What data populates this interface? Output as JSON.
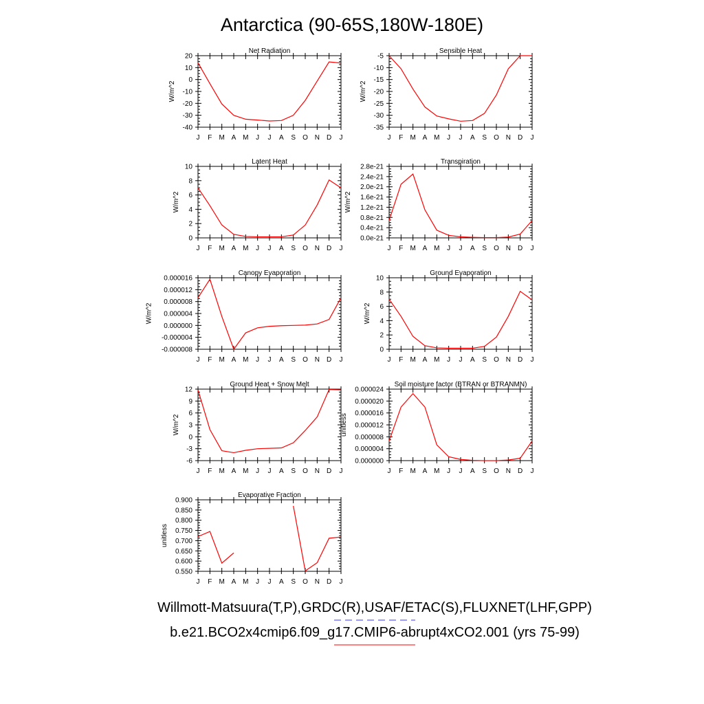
{
  "figure": {
    "title": "Antarctica (90-65S,180W-180E)"
  },
  "legend": [
    {
      "label": "Willmott-Matsuura(T,P),GRDC(R),USAF/ETAC(S),FLUXNET(LHF,GPP)",
      "color": "#3333ff",
      "dash": "dashed"
    },
    {
      "label": "b.e21.BCO2x4cmip6.f09_g17.CMIP6-abrupt4xCO2.001 (yrs 75-99)",
      "color": "#ff0000",
      "dash": "solid"
    }
  ],
  "chart_data": [
    {
      "type": "line",
      "title": "Net Radiation",
      "ylabel": "W/m^2",
      "categories": [
        "J",
        "F",
        "M",
        "A",
        "M",
        "J",
        "J",
        "A",
        "S",
        "O",
        "N",
        "D",
        "J"
      ],
      "ylim": [
        -40,
        20
      ],
      "yticks": [
        -40,
        -30,
        -20,
        -10,
        0,
        10,
        20
      ],
      "ytick_labels": [
        "-40",
        "-30",
        "-20",
        "-10",
        "0",
        "10",
        "20"
      ],
      "series": [
        {
          "color": "#ff0000",
          "values": [
            14,
            -3.5,
            -20.5,
            -30,
            -33.3,
            -34,
            -34.8,
            -34.4,
            -30,
            -17.5,
            -1.3,
            14.8,
            13.8
          ]
        }
      ]
    },
    {
      "type": "line",
      "title": "Sensible Heat",
      "ylabel": "W/m^2",
      "categories": [
        "J",
        "F",
        "M",
        "A",
        "M",
        "J",
        "J",
        "A",
        "S",
        "O",
        "N",
        "D",
        "J"
      ],
      "ylim": [
        -35,
        -5
      ],
      "yticks": [
        -35,
        -30,
        -25,
        -20,
        -15,
        -10,
        -5
      ],
      "ytick_labels": [
        "-35",
        "-30",
        "-25",
        "-20",
        "-15",
        "-10",
        "-5"
      ],
      "series": [
        {
          "color": "#ff0000",
          "values": [
            -5,
            -10.5,
            -19,
            -26.5,
            -30.3,
            -31.5,
            -32.5,
            -32.2,
            -29.2,
            -21.5,
            -10.5,
            -5,
            -5
          ]
        }
      ]
    },
    {
      "type": "line",
      "title": "Latent Heat",
      "ylabel": "W/m^2",
      "categories": [
        "J",
        "F",
        "M",
        "A",
        "M",
        "J",
        "J",
        "A",
        "S",
        "O",
        "N",
        "D",
        "J"
      ],
      "ylim": [
        0,
        10
      ],
      "yticks": [
        0,
        2,
        4,
        6,
        8,
        10
      ],
      "ytick_labels": [
        "0",
        "2",
        "4",
        "6",
        "8",
        "10"
      ],
      "series": [
        {
          "color": "#ff0000",
          "values": [
            7,
            4.5,
            1.8,
            0.5,
            0.2,
            0.15,
            0.15,
            0.15,
            0.4,
            1.8,
            4.6,
            8.1,
            7
          ]
        }
      ]
    },
    {
      "type": "line",
      "title": "Transpiration",
      "ylabel": "W/m^2",
      "categories": [
        "J",
        "F",
        "M",
        "A",
        "M",
        "J",
        "J",
        "A",
        "S",
        "O",
        "N",
        "D",
        "J"
      ],
      "ylim": [
        0,
        2.8
      ],
      "yticks": [
        0,
        0.4,
        0.8,
        1.2,
        1.6,
        2.0,
        2.4,
        2.8
      ],
      "ytick_labels": [
        "0.0e-21",
        "0.4e-21",
        "0.8e-21",
        "1.2e-21",
        "1.6e-21",
        "2.0e-21",
        "2.4e-21",
        "2.8e-21"
      ],
      "series": [
        {
          "color": "#ff0000",
          "values": [
            0.68,
            2.1,
            2.5,
            1.1,
            0.3,
            0.1,
            0.04,
            0.02,
            0.01,
            0.01,
            0.03,
            0.15,
            0.68
          ]
        }
      ]
    },
    {
      "type": "line",
      "title": "Canopy Evaporation",
      "ylabel": "W/m^2",
      "categories": [
        "J",
        "F",
        "M",
        "A",
        "M",
        "J",
        "J",
        "A",
        "S",
        "O",
        "N",
        "D",
        "J"
      ],
      "ylim": [
        -8e-06,
        1.6e-05
      ],
      "yticks": [
        -8e-06,
        -4e-06,
        0,
        4e-06,
        8e-06,
        1.2e-05,
        1.6e-05
      ],
      "ytick_labels": [
        "-0.000008",
        "-0.000004",
        "0.000000",
        "0.000004",
        "0.000008",
        "0.000012",
        "0.000016"
      ],
      "series": [
        {
          "color": "#ff0000",
          "values": [
            9.3e-06,
            1.55e-05,
            3e-06,
            -8e-06,
            -2.5e-06,
            -8e-07,
            -3e-07,
            -1e-07,
            0,
            1e-07,
            5e-07,
            2e-06,
            9.3e-06
          ]
        }
      ]
    },
    {
      "type": "line",
      "title": "Ground Evaporation",
      "ylabel": "W/m^2",
      "categories": [
        "J",
        "F",
        "M",
        "A",
        "M",
        "J",
        "J",
        "A",
        "S",
        "O",
        "N",
        "D",
        "J"
      ],
      "ylim": [
        0,
        10
      ],
      "yticks": [
        0,
        2,
        4,
        6,
        8,
        10
      ],
      "ytick_labels": [
        "0",
        "2",
        "4",
        "6",
        "8",
        "10"
      ],
      "series": [
        {
          "color": "#ff0000",
          "values": [
            7,
            4.6,
            1.8,
            0.5,
            0.2,
            0.15,
            0.15,
            0.15,
            0.4,
            1.7,
            4.6,
            8.1,
            6.9
          ]
        }
      ]
    },
    {
      "type": "line",
      "title": "Ground Heat + Snow Melt",
      "ylabel": "W/m^2",
      "categories": [
        "J",
        "F",
        "M",
        "A",
        "M",
        "J",
        "J",
        "A",
        "S",
        "O",
        "N",
        "D",
        "J"
      ],
      "ylim": [
        -6,
        12
      ],
      "yticks": [
        -6,
        -3,
        0,
        3,
        6,
        9,
        12
      ],
      "ytick_labels": [
        "-6",
        "-3",
        "0",
        "3",
        "6",
        "9",
        "12"
      ],
      "series": [
        {
          "color": "#ff0000",
          "values": [
            11.8,
            1.8,
            -3.5,
            -4,
            -3.4,
            -3,
            -2.9,
            -2.8,
            -1.5,
            1.6,
            5,
            11.9,
            11.8
          ]
        }
      ]
    },
    {
      "type": "line",
      "title": "Soil moisture factor (BTRAN or BTRANMN)",
      "ylabel": "unitless",
      "categories": [
        "J",
        "F",
        "M",
        "A",
        "M",
        "J",
        "J",
        "A",
        "S",
        "O",
        "N",
        "D",
        "J"
      ],
      "ylim": [
        0,
        2.4e-05
      ],
      "yticks": [
        0,
        4e-06,
        8e-06,
        1.2e-05,
        1.6e-05,
        2e-05,
        2.4e-05
      ],
      "ytick_labels": [
        "0.000000",
        "0.000004",
        "0.000008",
        "0.000012",
        "0.000016",
        "0.000020",
        "0.000024"
      ],
      "series": [
        {
          "color": "#ff0000",
          "values": [
            6.6e-06,
            1.8e-05,
            2.25e-05,
            1.8e-05,
            5.3e-06,
            1.3e-06,
            4e-07,
            1e-07,
            0,
            0,
            2e-07,
            8e-07,
            6.6e-06
          ]
        }
      ]
    },
    {
      "type": "line",
      "title": "Evaporative Fraction",
      "ylabel": "unitless",
      "categories": [
        "J",
        "F",
        "M",
        "A",
        "M",
        "J",
        "J",
        "A",
        "S",
        "O",
        "N",
        "D",
        "J"
      ],
      "ylim": [
        0.55,
        0.9
      ],
      "yticks": [
        0.55,
        0.6,
        0.65,
        0.7,
        0.75,
        0.8,
        0.85,
        0.9
      ],
      "ytick_labels": [
        "0.550",
        "0.600",
        "0.650",
        "0.700",
        "0.750",
        "0.800",
        "0.850",
        "0.900"
      ],
      "series": [
        {
          "color": "#ff0000",
          "values": [
            0.72,
            0.745,
            0.59,
            0.64,
            null,
            null,
            null,
            null,
            0.87,
            0.552,
            0.592,
            0.712,
            0.718
          ]
        }
      ]
    }
  ]
}
